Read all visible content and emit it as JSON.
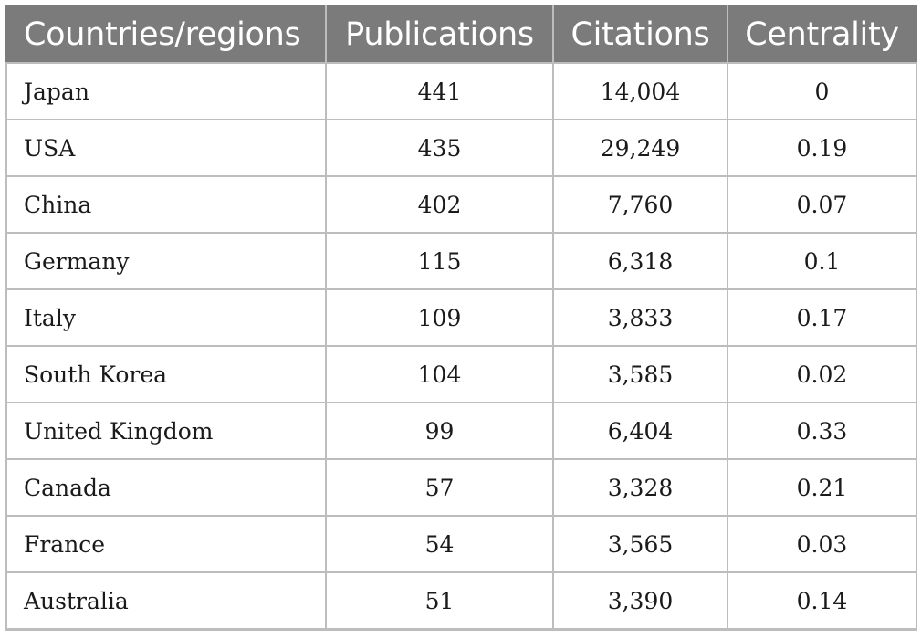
{
  "table": {
    "headers": [
      "Countries/regions",
      "Publications",
      "Citations",
      "Centrality"
    ],
    "rows": [
      [
        "Japan",
        "441",
        "14,004",
        "0"
      ],
      [
        "USA",
        "435",
        "29,249",
        "0.19"
      ],
      [
        "China",
        "402",
        "7,760",
        "0.07"
      ],
      [
        "Germany",
        "115",
        "6,318",
        "0.1"
      ],
      [
        "Italy",
        "109",
        "3,833",
        "0.17"
      ],
      [
        "South Korea",
        "104",
        "3,585",
        "0.02"
      ],
      [
        "United Kingdom",
        "99",
        "6,404",
        "0.33"
      ],
      [
        "Canada",
        "57",
        "3,328",
        "0.21"
      ],
      [
        "France",
        "54",
        "3,565",
        "0.03"
      ],
      [
        "Australia",
        "51",
        "3,390",
        "0.14"
      ]
    ]
  },
  "colors": {
    "header_bg": "#7b7b7b",
    "header_text": "#ffffff",
    "grid": "#bdbdbd"
  }
}
